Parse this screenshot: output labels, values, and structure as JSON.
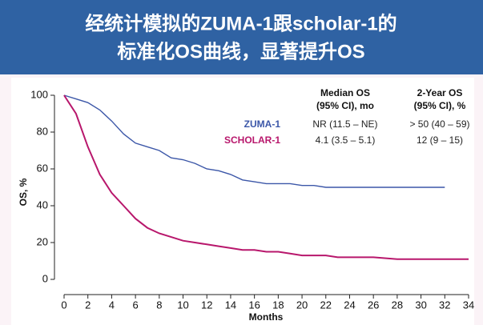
{
  "chart_data": {
    "type": "line",
    "title": [
      "经统计模拟的ZUMA-1跟scholar-1的",
      "标准化OS曲线，显著提升OS"
    ],
    "x_label": "Months",
    "y_label": "OS, %",
    "xlim": [
      0,
      34
    ],
    "xticks": [
      0,
      2,
      4,
      6,
      8,
      10,
      12,
      14,
      16,
      18,
      20,
      22,
      24,
      26,
      28,
      30,
      32,
      34
    ],
    "ylim": [
      0,
      100
    ],
    "yticks": [
      0,
      20,
      40,
      60,
      80,
      100
    ],
    "series": [
      {
        "name": "ZUMA-1",
        "color": "#3c57a8",
        "x": [
          0,
          1,
          2,
          3,
          4,
          5,
          6,
          7,
          8,
          9,
          10,
          11,
          12,
          13,
          14,
          15,
          16,
          17,
          18,
          19,
          20,
          21,
          22,
          24,
          26,
          28,
          30,
          32
        ],
        "values": [
          100,
          98,
          96,
          92,
          86,
          79,
          74,
          72,
          70,
          66,
          65,
          63,
          60,
          59,
          57,
          54,
          53,
          52,
          52,
          52,
          51,
          51,
          50,
          50,
          50,
          50,
          50,
          50
        ]
      },
      {
        "name": "SCHOLAR-1",
        "color": "#b8176c",
        "x": [
          0,
          1,
          2,
          3,
          4,
          5,
          6,
          7,
          8,
          9,
          10,
          11,
          12,
          13,
          14,
          15,
          16,
          17,
          18,
          19,
          20,
          21,
          22,
          23,
          24,
          26,
          28,
          30,
          32,
          34
        ],
        "values": [
          100,
          90,
          72,
          57,
          47,
          40,
          33,
          28,
          25,
          23,
          21,
          20,
          19,
          18,
          17,
          16,
          16,
          15,
          15,
          14,
          13,
          13,
          13,
          12,
          12,
          12,
          11,
          11,
          11,
          11
        ]
      }
    ],
    "table": {
      "headers": [
        [
          "Median OS",
          "(95% CI), mo"
        ],
        [
          "2-Year OS",
          "(95% CI), %"
        ]
      ],
      "rows": [
        [
          "NR (11.5 – NE)",
          "> 50 (40 – 59)"
        ],
        [
          "4.1 (3.5 – 5.1)",
          "12 (9 – 15)"
        ]
      ]
    }
  }
}
